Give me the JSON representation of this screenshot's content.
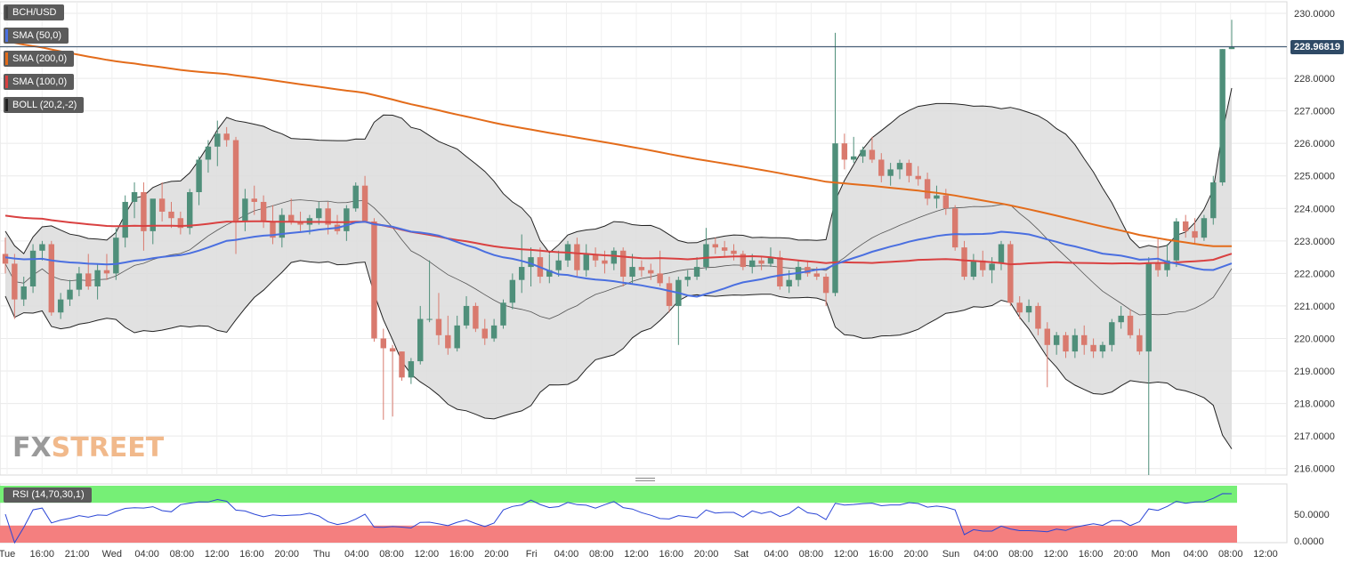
{
  "legend": [
    {
      "label": "BCH/USD",
      "color": "#444444"
    },
    {
      "label": "SMA (50,0)",
      "color": "#4a6fe0"
    },
    {
      "label": "SMA (200,0)",
      "color": "#e36c1b"
    },
    {
      "label": "SMA (100,0)",
      "color": "#d94141"
    },
    {
      "label": "BOLL (20,2,-2)",
      "color": "#222222"
    }
  ],
  "last_price": "228.96819",
  "rsi_label": "RSI (14,70,30,1)",
  "watermark": {
    "fx": "FX",
    "street": "STREET"
  },
  "colors": {
    "up": "#4f8f7a",
    "down": "#d97a6e",
    "sma50": "#4a6fe0",
    "sma100": "#d94141",
    "sma200": "#e36c1b",
    "band_fill": "#dcdcdc"
  },
  "chart_data": {
    "type": "candlestick",
    "symbol": "BCH/USD",
    "ylim": [
      215.8,
      230.3
    ],
    "y_ticks": [
      "216.0000",
      "217.0000",
      "218.0000",
      "219.0000",
      "220.0000",
      "221.0000",
      "222.0000",
      "223.0000",
      "224.0000",
      "225.0000",
      "226.0000",
      "227.0000",
      "228.0000",
      "229.0000",
      "230.0000"
    ],
    "x_ticks": [
      "Tue",
      "16:00",
      "21:00",
      "Wed",
      "04:00",
      "08:00",
      "12:00",
      "16:00",
      "20:00",
      "Thu",
      "04:00",
      "08:00",
      "12:00",
      "16:00",
      "20:00",
      "Fri",
      "04:00",
      "08:00",
      "12:00",
      "16:00",
      "20:00",
      "Sat",
      "04:00",
      "08:00",
      "12:00",
      "16:00",
      "20:00",
      "Sun",
      "04:00",
      "08:00",
      "12:00",
      "16:00",
      "20:00",
      "Mon",
      "04:00",
      "08:00",
      "12:00"
    ],
    "ohlc": [
      [
        222.6,
        223.1,
        222.0,
        222.3
      ],
      [
        222.3,
        222.6,
        220.6,
        221.2
      ],
      [
        221.2,
        221.9,
        221.0,
        221.6
      ],
      [
        221.6,
        222.9,
        221.4,
        222.7
      ],
      [
        222.7,
        223.0,
        222.4,
        222.9
      ],
      [
        222.9,
        223.0,
        220.7,
        220.8
      ],
      [
        220.8,
        221.4,
        220.6,
        221.2
      ],
      [
        221.2,
        221.8,
        221.0,
        221.5
      ],
      [
        221.5,
        222.2,
        221.3,
        222.0
      ],
      [
        222.0,
        222.6,
        221.5,
        221.6
      ],
      [
        221.6,
        222.3,
        221.2,
        222.1
      ],
      [
        222.1,
        222.6,
        221.8,
        222.0
      ],
      [
        222.0,
        223.4,
        221.8,
        223.1
      ],
      [
        223.1,
        224.4,
        222.8,
        224.2
      ],
      [
        224.2,
        224.8,
        223.7,
        224.5
      ],
      [
        224.5,
        224.8,
        222.7,
        223.3
      ],
      [
        223.3,
        224.2,
        222.9,
        224.3
      ],
      [
        224.3,
        224.8,
        223.6,
        223.9
      ],
      [
        223.9,
        224.2,
        223.4,
        223.7
      ],
      [
        223.7,
        223.9,
        223.2,
        223.4
      ],
      [
        223.4,
        224.6,
        223.2,
        224.5
      ],
      [
        224.5,
        225.6,
        224.1,
        225.5
      ],
      [
        225.5,
        226.1,
        225.1,
        225.9
      ],
      [
        225.9,
        226.7,
        225.3,
        226.3
      ],
      [
        226.3,
        226.5,
        225.9,
        226.1
      ],
      [
        226.1,
        226.2,
        222.6,
        223.6
      ],
      [
        223.6,
        224.6,
        223.3,
        224.3
      ],
      [
        224.3,
        224.7,
        223.8,
        224.2
      ],
      [
        224.2,
        224.4,
        223.4,
        223.6
      ],
      [
        223.6,
        224.1,
        222.9,
        223.1
      ],
      [
        223.1,
        224.0,
        222.8,
        223.8
      ],
      [
        223.8,
        224.3,
        223.5,
        223.6
      ],
      [
        223.6,
        223.9,
        223.3,
        223.5
      ],
      [
        223.5,
        223.8,
        223.2,
        223.7
      ],
      [
        223.7,
        224.2,
        223.5,
        224.0
      ],
      [
        224.0,
        224.2,
        223.2,
        223.5
      ],
      [
        223.5,
        223.8,
        223.2,
        223.3
      ],
      [
        223.3,
        224.1,
        223.0,
        224.0
      ],
      [
        224.0,
        224.8,
        223.9,
        224.7
      ],
      [
        224.7,
        225.0,
        223.6,
        223.6
      ],
      [
        223.6,
        223.7,
        219.9,
        220.0
      ],
      [
        220.0,
        220.3,
        217.5,
        219.7
      ],
      [
        219.7,
        219.8,
        217.6,
        219.6
      ],
      [
        219.6,
        219.6,
        218.7,
        218.8
      ],
      [
        218.8,
        219.4,
        218.6,
        219.3
      ],
      [
        219.3,
        221.0,
        219.2,
        220.6
      ],
      [
        220.6,
        222.4,
        220.5,
        220.6
      ],
      [
        220.6,
        221.4,
        219.8,
        220.1
      ],
      [
        220.1,
        220.7,
        219.5,
        219.7
      ],
      [
        219.7,
        220.7,
        219.6,
        220.4
      ],
      [
        220.4,
        221.3,
        220.3,
        221.0
      ],
      [
        221.0,
        221.1,
        220.2,
        220.3
      ],
      [
        220.3,
        220.6,
        219.8,
        220.0
      ],
      [
        220.0,
        220.6,
        219.9,
        220.4
      ],
      [
        220.4,
        221.2,
        220.3,
        221.1
      ],
      [
        221.1,
        222.0,
        220.9,
        221.8
      ],
      [
        221.8,
        223.2,
        221.4,
        222.2
      ],
      [
        222.2,
        222.8,
        221.6,
        222.5
      ],
      [
        222.5,
        222.8,
        221.7,
        221.9
      ],
      [
        221.9,
        222.6,
        221.7,
        222.1
      ],
      [
        222.1,
        222.7,
        221.9,
        222.4
      ],
      [
        222.4,
        223.0,
        222.2,
        222.9
      ],
      [
        222.9,
        223.1,
        221.9,
        222.1
      ],
      [
        222.1,
        222.9,
        221.9,
        222.6
      ],
      [
        222.6,
        222.8,
        222.2,
        222.4
      ],
      [
        222.4,
        222.7,
        222.0,
        222.3
      ],
      [
        222.3,
        222.8,
        222.1,
        222.7
      ],
      [
        222.7,
        222.8,
        221.6,
        221.9
      ],
      [
        221.9,
        222.6,
        221.7,
        222.2
      ],
      [
        222.2,
        222.4,
        221.9,
        222.1
      ],
      [
        222.1,
        222.3,
        221.8,
        222.0
      ],
      [
        222.0,
        222.7,
        221.6,
        221.7
      ],
      [
        221.7,
        221.9,
        220.8,
        221.0
      ],
      [
        221.0,
        221.9,
        219.8,
        221.8
      ],
      [
        221.8,
        222.1,
        221.6,
        221.9
      ],
      [
        221.9,
        222.5,
        221.8,
        222.2
      ],
      [
        222.2,
        223.4,
        222.1,
        222.9
      ],
      [
        222.9,
        223.1,
        222.6,
        222.8
      ],
      [
        222.8,
        223.0,
        222.5,
        222.7
      ],
      [
        222.7,
        222.9,
        222.4,
        222.6
      ],
      [
        222.6,
        222.7,
        222.1,
        222.2
      ],
      [
        222.2,
        222.6,
        222.0,
        222.4
      ],
      [
        222.4,
        222.5,
        222.1,
        222.3
      ],
      [
        222.3,
        222.8,
        222.2,
        222.5
      ],
      [
        222.5,
        222.7,
        221.5,
        221.6
      ],
      [
        221.6,
        222.1,
        221.4,
        221.8
      ],
      [
        221.8,
        222.4,
        221.6,
        222.2
      ],
      [
        222.2,
        222.4,
        221.9,
        222.0
      ],
      [
        222.0,
        222.2,
        221.8,
        221.9
      ],
      [
        221.9,
        222.0,
        221.0,
        221.4
      ],
      [
        221.4,
        229.4,
        221.3,
        226.0
      ],
      [
        226.0,
        226.3,
        225.2,
        225.5
      ],
      [
        225.5,
        226.2,
        225.4,
        225.6
      ],
      [
        225.6,
        225.9,
        225.4,
        225.8
      ],
      [
        225.8,
        226.2,
        225.4,
        225.5
      ],
      [
        225.5,
        225.7,
        224.8,
        225.0
      ],
      [
        225.0,
        225.4,
        224.7,
        225.2
      ],
      [
        225.2,
        225.5,
        224.9,
        225.4
      ],
      [
        225.4,
        225.5,
        224.8,
        225.0
      ],
      [
        225.0,
        225.3,
        224.7,
        224.9
      ],
      [
        224.9,
        225.1,
        224.1,
        224.3
      ],
      [
        224.3,
        224.7,
        224.0,
        224.4
      ],
      [
        224.4,
        224.6,
        223.8,
        224.0
      ],
      [
        224.0,
        224.1,
        222.7,
        222.8
      ],
      [
        222.8,
        223.0,
        221.8,
        221.9
      ],
      [
        221.9,
        222.6,
        221.8,
        222.4
      ],
      [
        222.4,
        222.7,
        221.9,
        222.1
      ],
      [
        222.1,
        222.5,
        221.7,
        222.3
      ],
      [
        222.3,
        223.0,
        222.1,
        222.9
      ],
      [
        222.9,
        223.0,
        221.0,
        221.1
      ],
      [
        221.1,
        221.3,
        220.6,
        220.8
      ],
      [
        220.8,
        221.2,
        220.5,
        221.0
      ],
      [
        221.0,
        221.1,
        220.1,
        220.3
      ],
      [
        220.3,
        220.5,
        218.5,
        219.8
      ],
      [
        219.8,
        220.2,
        219.5,
        220.1
      ],
      [
        220.1,
        220.2,
        219.4,
        219.6
      ],
      [
        219.6,
        220.3,
        219.4,
        220.1
      ],
      [
        220.1,
        220.4,
        219.5,
        219.8
      ],
      [
        219.8,
        220.0,
        219.4,
        219.6
      ],
      [
        219.6,
        219.9,
        219.4,
        219.8
      ],
      [
        219.8,
        220.6,
        219.6,
        220.5
      ],
      [
        220.5,
        221.0,
        220.3,
        220.7
      ],
      [
        220.7,
        220.9,
        220.0,
        220.1
      ],
      [
        220.1,
        220.3,
        219.5,
        219.6
      ],
      [
        219.6,
        222.5,
        215.8,
        222.3
      ],
      [
        222.3,
        223.1,
        221.9,
        222.1
      ],
      [
        222.1,
        222.9,
        221.9,
        222.4
      ],
      [
        222.4,
        223.7,
        222.2,
        223.6
      ],
      [
        223.6,
        223.8,
        223.1,
        223.3
      ],
      [
        223.3,
        223.7,
        222.9,
        223.1
      ],
      [
        223.1,
        223.8,
        223.0,
        223.7
      ],
      [
        223.7,
        225.0,
        223.5,
        224.8
      ],
      [
        224.8,
        228.9,
        224.7,
        228.9
      ],
      [
        228.9,
        229.8,
        228.9,
        228.97
      ]
    ],
    "rsi": {
      "ylim": [
        0,
        100
      ],
      "overbought": 70,
      "oversold": 30,
      "y_ticks": [
        "0.0000",
        "50.0000"
      ]
    }
  }
}
